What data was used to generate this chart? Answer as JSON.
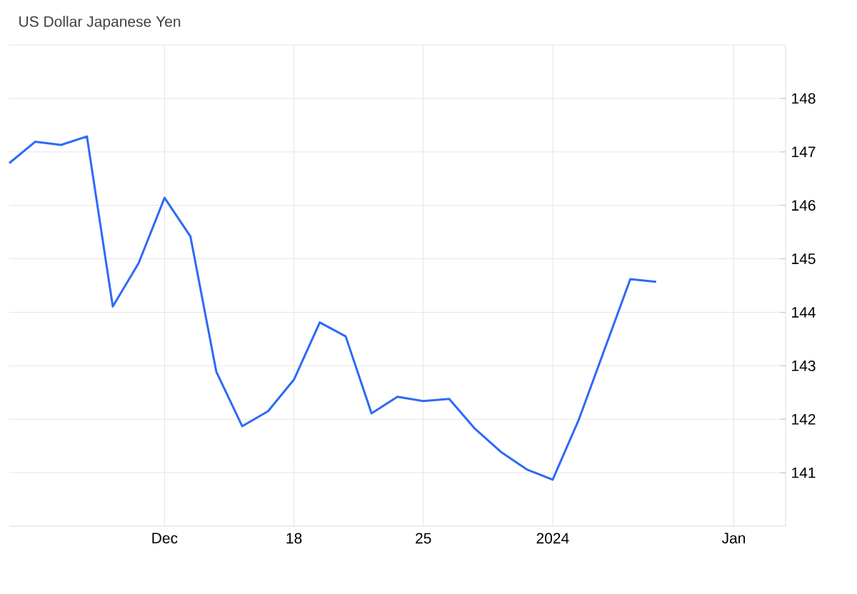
{
  "chart_data": {
    "type": "line",
    "title": "US Dollar Japanese Yen",
    "categories": [
      null,
      null,
      null,
      null,
      null,
      null,
      "Dec",
      null,
      null,
      null,
      null,
      "18",
      null,
      null,
      null,
      null,
      "25",
      null,
      null,
      null,
      null,
      "2024",
      null,
      null,
      null,
      null,
      null,
      null,
      "Jan",
      null,
      null
    ],
    "values": [
      146.79,
      147.19,
      147.13,
      147.29,
      144.11,
      144.92,
      146.14,
      145.42,
      142.89,
      141.87,
      142.15,
      142.74,
      143.81,
      143.55,
      142.11,
      142.42,
      142.34,
      142.38,
      141.82,
      141.39,
      141.06,
      140.87,
      141.98,
      143.3,
      144.62,
      144.57,
      null,
      null,
      null,
      null,
      null
    ],
    "color": "#2e6af6",
    "ylim": [
      140,
      149
    ],
    "yticks": [
      141,
      142,
      143,
      144,
      145,
      146,
      147,
      148
    ],
    "grid": true
  }
}
